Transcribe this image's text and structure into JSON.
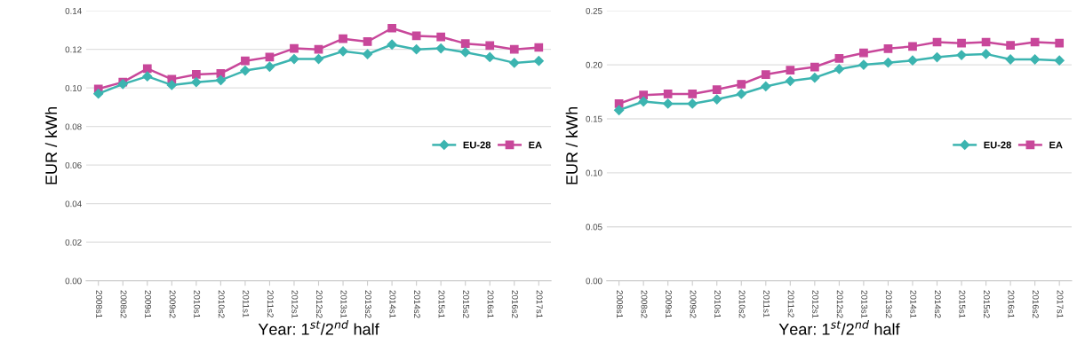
{
  "chart_data": [
    {
      "type": "line",
      "xlabel": "Year: 1$^{st}$/2$^{nd}$ half",
      "ylabel": "EUR / kWh",
      "categories": [
        "2008s1",
        "2008s2",
        "2009s1",
        "2009s2",
        "2010s1",
        "2010s2",
        "2011s1",
        "2011s2",
        "2012s1",
        "2012s2",
        "2013s1",
        "2013s2",
        "2014s1",
        "2014s2",
        "2015s1",
        "2015s2",
        "2016s1",
        "2016s2",
        "2017s1"
      ],
      "series": [
        {
          "name": "EU-28",
          "color": "#3cb4b0",
          "marker": "diamond",
          "values": [
            0.097,
            0.102,
            0.106,
            0.1015,
            0.103,
            0.104,
            0.109,
            0.111,
            0.115,
            0.115,
            0.119,
            0.1175,
            0.1225,
            0.12,
            0.1205,
            0.1185,
            0.116,
            0.113,
            0.114
          ]
        },
        {
          "name": "EA",
          "color": "#c8479a",
          "marker": "square",
          "values": [
            0.0995,
            0.103,
            0.11,
            0.1045,
            0.107,
            0.1075,
            0.114,
            0.116,
            0.1205,
            0.12,
            0.1255,
            0.124,
            0.131,
            0.127,
            0.1265,
            0.123,
            0.122,
            0.12,
            0.121
          ]
        }
      ],
      "ylim": [
        0,
        0.14
      ],
      "yticks": [
        {
          "value": 0,
          "label": "0.00"
        },
        {
          "value": 0.02,
          "label": "0.02"
        },
        {
          "value": 0.04,
          "label": "0.04"
        },
        {
          "value": 0.06,
          "label": "0.06"
        },
        {
          "value": 0.08,
          "label": "0.08"
        },
        {
          "value": 0.1,
          "label": "0.10"
        },
        {
          "value": 0.12,
          "label": "0.12"
        },
        {
          "value": 0.14,
          "label": "0.14"
        }
      ],
      "grid": "y",
      "legend": "right",
      "line_style": "solid"
    },
    {
      "type": "line",
      "xlabel": "Year: 1$^{st}$/2$^{nd}$ half",
      "ylabel": "EUR / kWh",
      "categories": [
        "2008s1",
        "2008s2",
        "2009s1",
        "2009s2",
        "2010s1",
        "2010s2",
        "2011s1",
        "2011s2",
        "2012s1",
        "2012s2",
        "2013s1",
        "2013s2",
        "2014s1",
        "2014s2",
        "2015s1",
        "2015s2",
        "2016s1",
        "2016s2",
        "2017s1"
      ],
      "series": [
        {
          "name": "EU-28",
          "color": "#3cb4b0",
          "marker": "diamond",
          "values": [
            0.158,
            0.166,
            0.164,
            0.164,
            0.168,
            0.173,
            0.18,
            0.185,
            0.188,
            0.196,
            0.2,
            0.202,
            0.204,
            0.207,
            0.209,
            0.21,
            0.205,
            0.205,
            0.204
          ]
        },
        {
          "name": "EA",
          "color": "#c8479a",
          "marker": "square",
          "values": [
            0.164,
            0.172,
            0.173,
            0.173,
            0.177,
            0.182,
            0.191,
            0.195,
            0.198,
            0.206,
            0.211,
            0.215,
            0.217,
            0.221,
            0.22,
            0.221,
            0.218,
            0.221,
            0.22
          ]
        }
      ],
      "ylim": [
        0,
        0.25
      ],
      "yticks": [
        {
          "value": 0,
          "label": "0.00"
        },
        {
          "value": 0.05,
          "label": "0.05"
        },
        {
          "value": 0.1,
          "label": "0.10"
        },
        {
          "value": 0.15,
          "label": "0.15"
        },
        {
          "value": 0.2,
          "label": "0.20"
        },
        {
          "value": 0.25,
          "label": "0.25"
        }
      ],
      "grid": "y",
      "legend": "right",
      "line_style": "solid"
    }
  ]
}
